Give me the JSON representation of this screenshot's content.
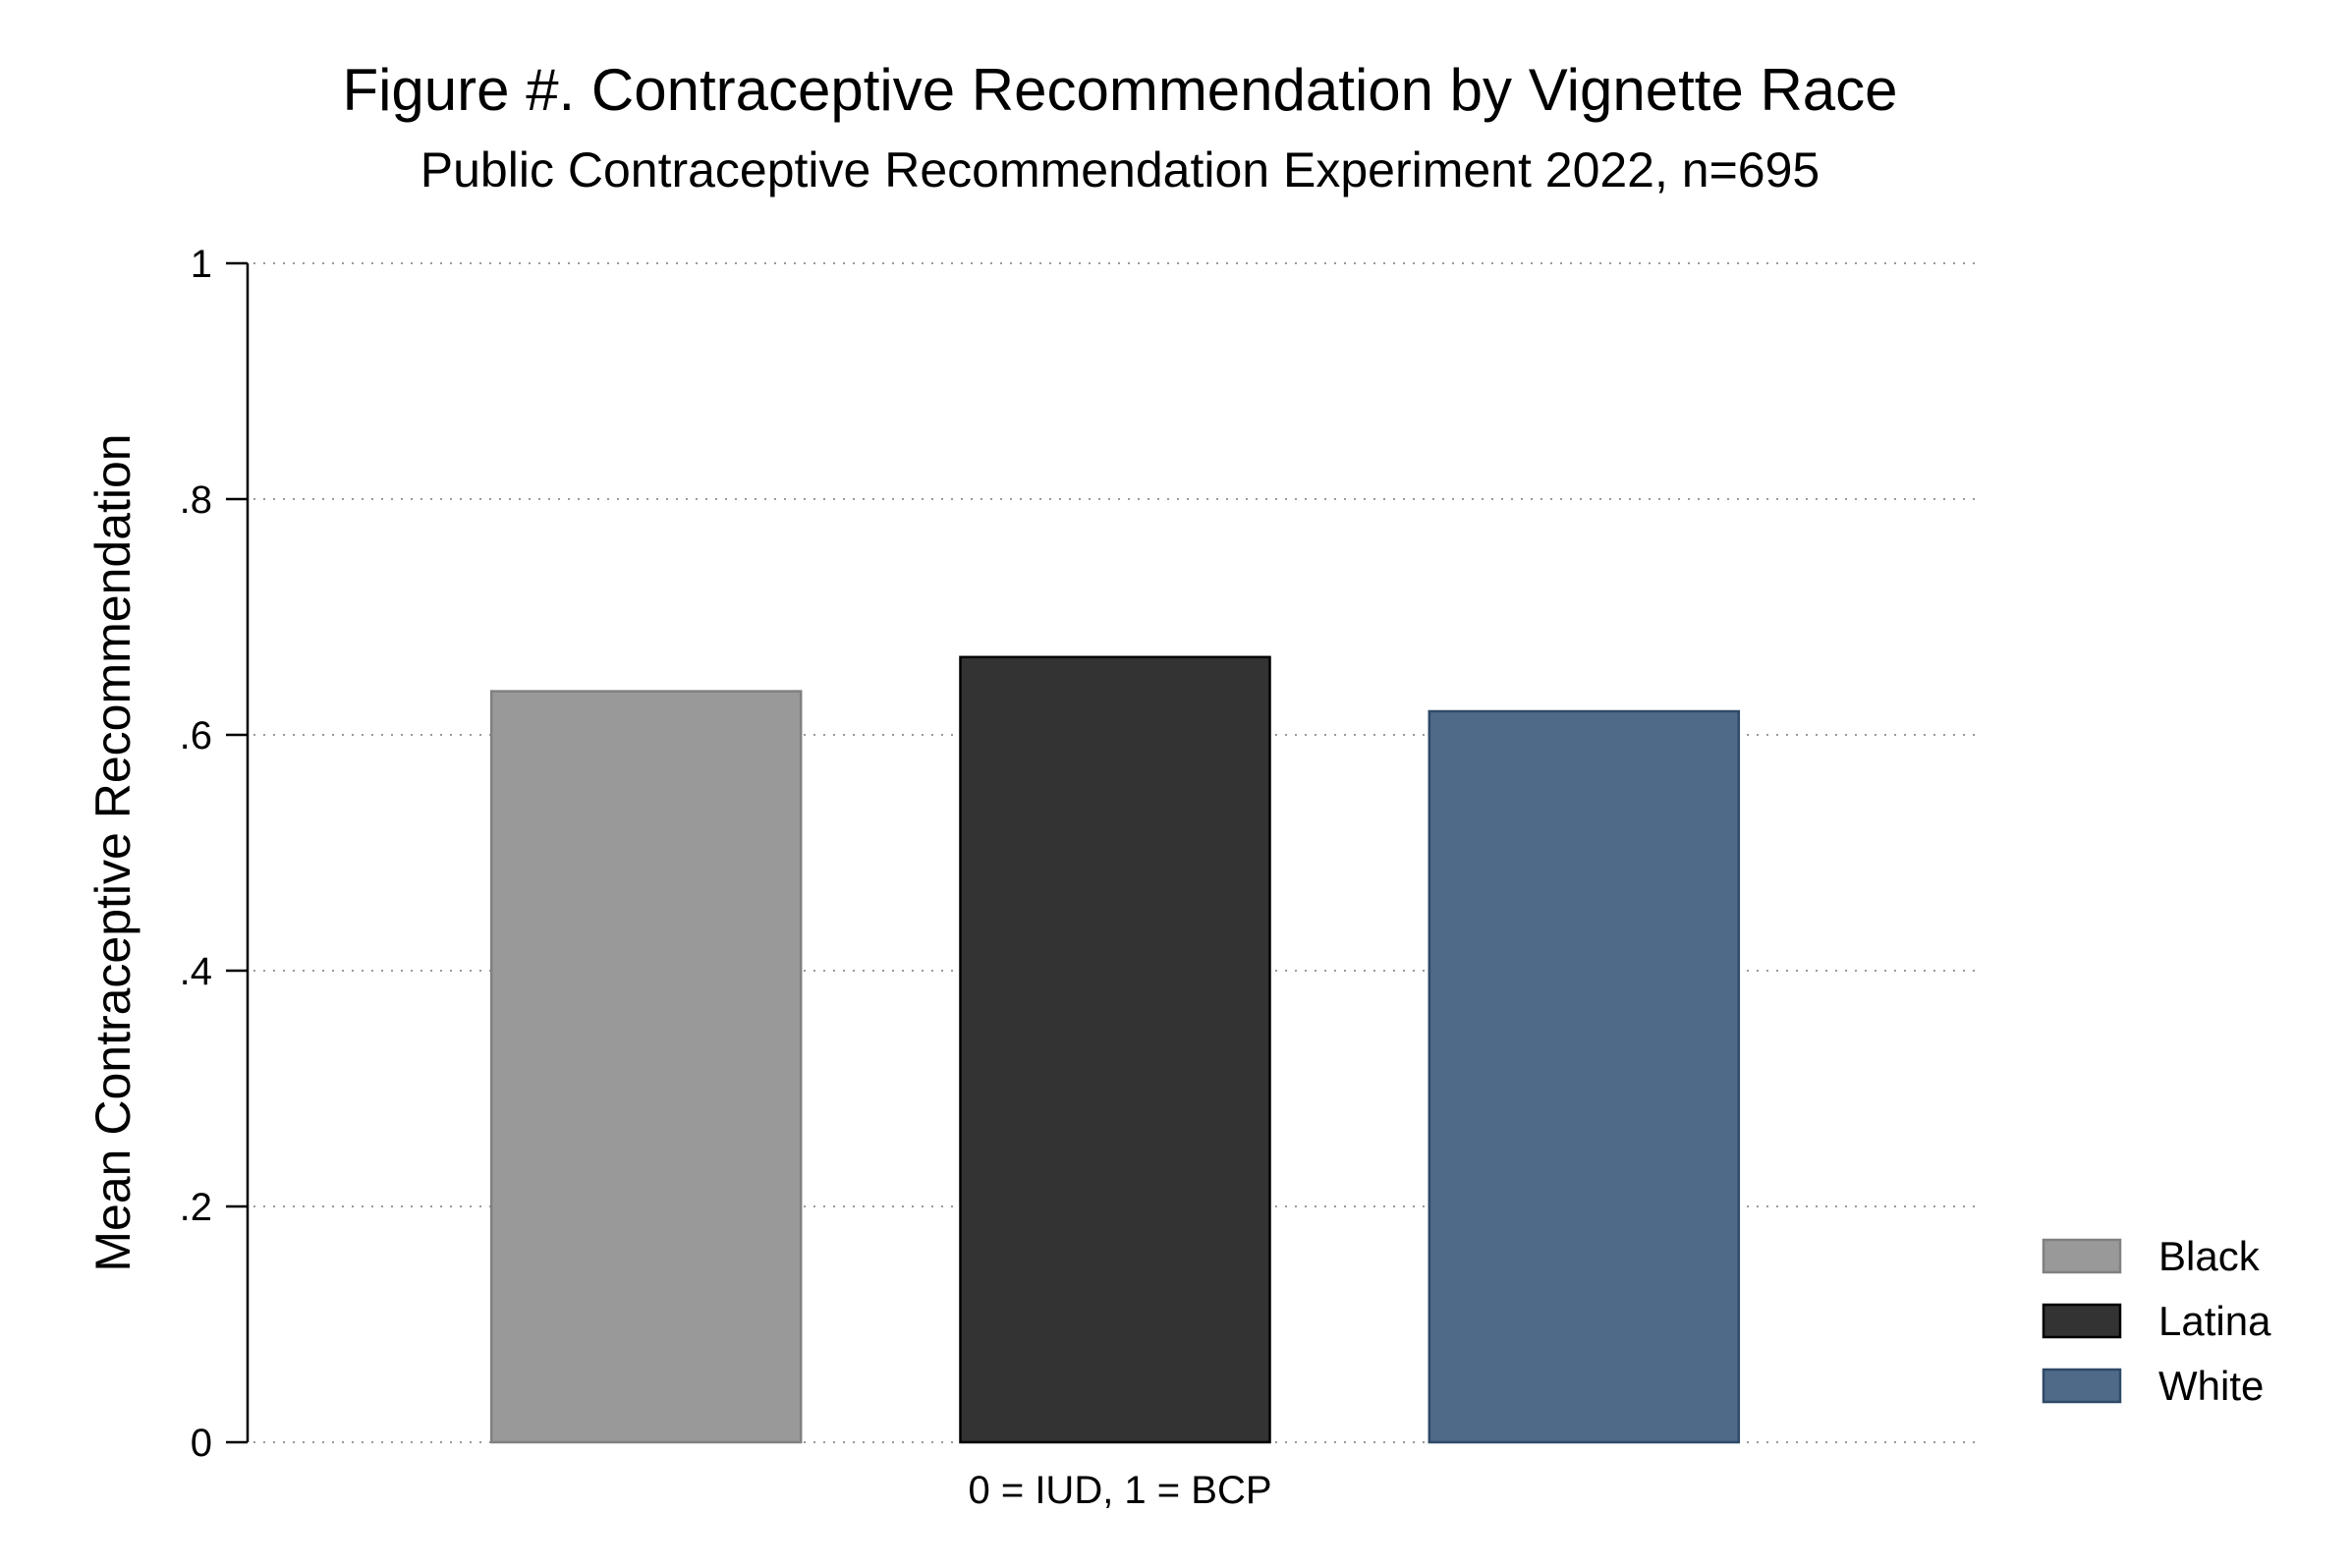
{
  "chart_data": {
    "type": "bar",
    "title": "Figure #. Contraceptive Recommendation by Vignette Race",
    "subtitle": "Public Contraceptive Recommendation Experiment 2022, n=695",
    "xlabel": "0 = IUD, 1 = BCP",
    "ylabel": "Mean Contraceptive Recommendation",
    "ylim": [
      0,
      1
    ],
    "yticks": [
      {
        "value": 0,
        "label": "0"
      },
      {
        "value": 0.2,
        "label": ".2"
      },
      {
        "value": 0.4,
        "label": ".4"
      },
      {
        "value": 0.6,
        "label": ".6"
      },
      {
        "value": 0.8,
        "label": ".8"
      },
      {
        "value": 1,
        "label": "1"
      }
    ],
    "grid": true,
    "legend_position": "right-bottom",
    "series": [
      {
        "name": "Black",
        "value": 0.637,
        "color": "#999999",
        "stroke": "#808080"
      },
      {
        "name": "Latina",
        "value": 0.666,
        "color": "#333333",
        "stroke": "#000000"
      },
      {
        "name": "White",
        "value": 0.62,
        "color": "#4f6a88",
        "stroke": "#2f4a68"
      }
    ]
  }
}
